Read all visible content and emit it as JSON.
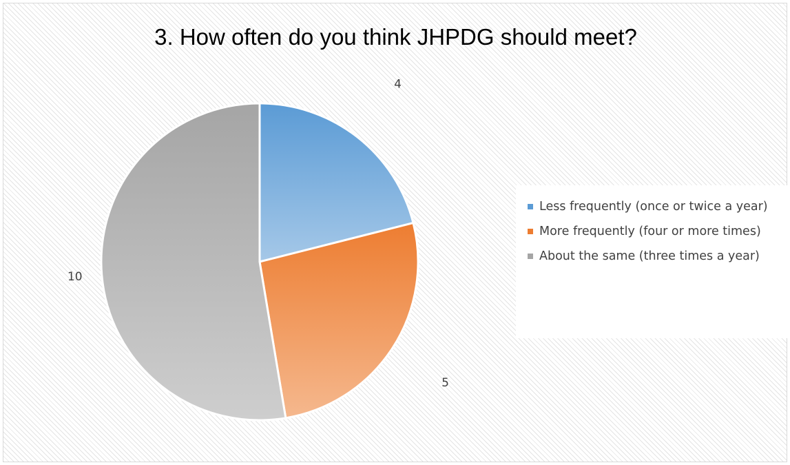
{
  "chart_data": {
    "type": "pie",
    "title": "3. How often do you think JHPDG should meet?",
    "categories": [
      "Less frequently (once or twice a year)",
      "More frequently (four or more times)",
      "About the same (three times a year)"
    ],
    "values": [
      4,
      5,
      10
    ],
    "data_labels": [
      "4",
      "5",
      "10"
    ],
    "colors": [
      "#5b9bd5",
      "#ed7d31",
      "#a5a5a5"
    ],
    "start_angle_deg": 0,
    "direction": "clockwise",
    "legend_position": "right",
    "slice_fill": "vertical gradient, darker at top"
  }
}
